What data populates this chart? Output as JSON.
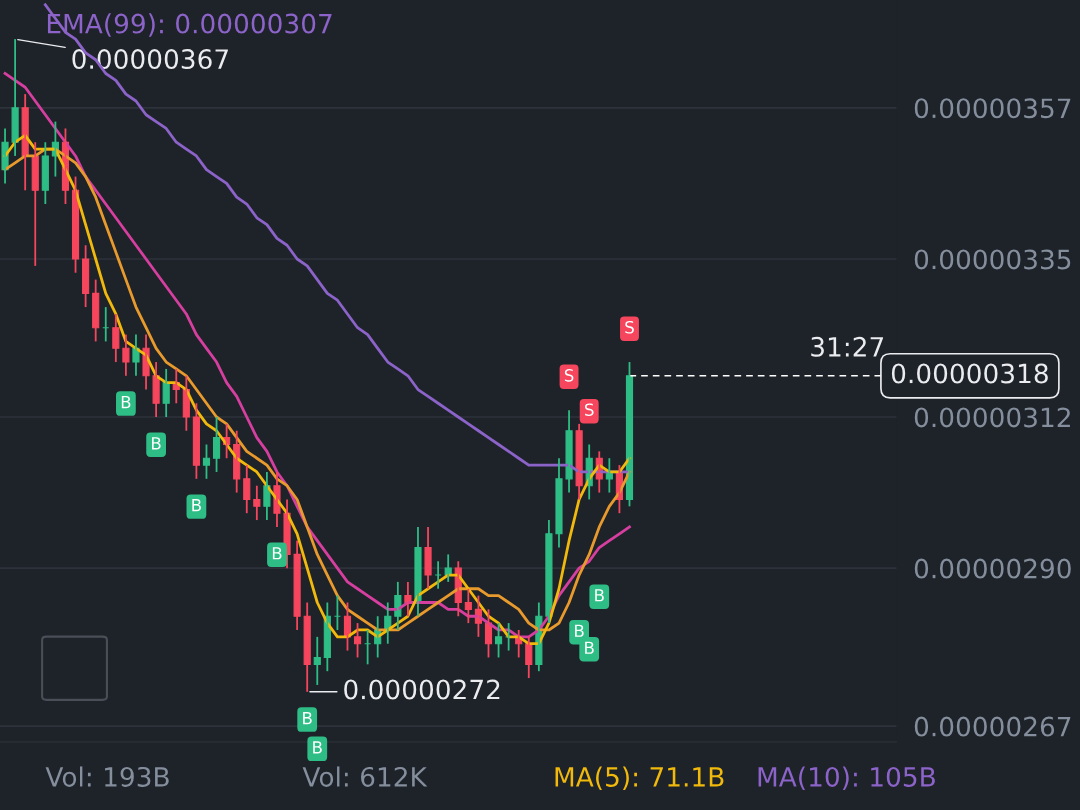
{
  "chart_data": {
    "type": "candlestick",
    "categories": [
      null,
      null,
      null,
      null,
      null,
      null,
      null,
      null,
      null,
      null,
      null,
      null,
      null,
      null,
      null,
      null,
      null,
      null,
      null,
      null,
      null,
      null,
      null,
      null,
      null,
      null,
      null,
      null,
      null,
      null,
      null,
      null,
      null,
      null,
      null,
      null,
      null,
      null,
      null,
      null,
      null,
      null,
      null,
      null,
      null,
      null,
      null,
      null,
      null,
      null,
      null,
      null,
      null,
      null,
      null,
      null,
      null,
      null,
      null,
      null,
      null,
      null,
      null
    ],
    "ohlc": [
      [
        3.48e-06,
        3.54e-06,
        3.46e-06,
        3.52e-06
      ],
      [
        3.52e-06,
        3.67e-06,
        3.5e-06,
        3.57e-06
      ],
      [
        3.57e-06,
        3.59e-06,
        3.45e-06,
        3.5e-06
      ],
      [
        3.5e-06,
        3.52e-06,
        3.34e-06,
        3.45e-06
      ],
      [
        3.45e-06,
        3.52e-06,
        3.43e-06,
        3.5e-06
      ],
      [
        3.5e-06,
        3.55e-06,
        3.47e-06,
        3.52e-06
      ],
      [
        3.52e-06,
        3.54e-06,
        3.43e-06,
        3.45e-06
      ],
      [
        3.45e-06,
        3.47e-06,
        3.33e-06,
        3.35e-06
      ],
      [
        3.35e-06,
        3.37e-06,
        3.28e-06,
        3.3e-06
      ],
      [
        3.3e-06,
        3.32e-06,
        3.23e-06,
        3.25e-06
      ],
      [
        3.25e-06,
        3.28e-06,
        3.23e-06,
        3.25e-06
      ],
      [
        3.25e-06,
        3.27e-06,
        3.2e-06,
        3.22e-06
      ],
      [
        3.22e-06,
        3.24e-06,
        3.18e-06,
        3.2e-06
      ],
      [
        3.2e-06,
        3.24e-06,
        3.18e-06,
        3.22e-06
      ],
      [
        3.22e-06,
        3.24e-06,
        3.16e-06,
        3.18e-06
      ],
      [
        3.18e-06,
        3.2e-06,
        3.12e-06,
        3.14e-06
      ],
      [
        3.14e-06,
        3.19e-06,
        3.12e-06,
        3.17e-06
      ],
      [
        3.17e-06,
        3.19e-06,
        3.14e-06,
        3.16e-06
      ],
      [
        3.16e-06,
        3.18e-06,
        3.1e-06,
        3.12e-06
      ],
      [
        3.12e-06,
        3.14e-06,
        3.03e-06,
        3.05e-06
      ],
      [
        3.05e-06,
        3.08e-06,
        3.03e-06,
        3.06e-06
      ],
      [
        3.06e-06,
        3.12e-06,
        3.04e-06,
        3.09e-06
      ],
      [
        3.09e-06,
        3.11e-06,
        3.06e-06,
        3.08e-06
      ],
      [
        3.08e-06,
        3.1e-06,
        3.01e-06,
        3.03e-06
      ],
      [
        3.03e-06,
        3.05e-06,
        2.98e-06,
        3e-06
      ],
      [
        3e-06,
        3.02e-06,
        2.97e-06,
        2.99e-06
      ],
      [
        2.99e-06,
        3.04e-06,
        2.97e-06,
        3.02e-06
      ],
      [
        3.02e-06,
        3.04e-06,
        2.96e-06,
        2.98e-06
      ],
      [
        2.98e-06,
        3e-06,
        2.9e-06,
        2.92e-06
      ],
      [
        2.92e-06,
        2.94e-06,
        2.81e-06,
        2.83e-06
      ],
      [
        2.83e-06,
        2.85e-06,
        2.72e-06,
        2.76e-06
      ],
      [
        2.76e-06,
        2.8e-06,
        2.73e-06,
        2.77e-06
      ],
      [
        2.77e-06,
        2.85e-06,
        2.75e-06,
        2.83e-06
      ],
      [
        2.83e-06,
        2.86e-06,
        2.81e-06,
        2.83e-06
      ],
      [
        2.83e-06,
        2.85e-06,
        2.78e-06,
        2.8e-06
      ],
      [
        2.8e-06,
        2.82e-06,
        2.77e-06,
        2.79e-06
      ],
      [
        2.79e-06,
        2.81e-06,
        2.76e-06,
        2.79e-06
      ],
      [
        2.79e-06,
        2.83e-06,
        2.77e-06,
        2.81e-06
      ],
      [
        2.81e-06,
        2.85e-06,
        2.79e-06,
        2.83e-06
      ],
      [
        2.83e-06,
        2.88e-06,
        2.81e-06,
        2.86e-06
      ],
      [
        2.86e-06,
        2.88e-06,
        2.83e-06,
        2.85e-06
      ],
      [
        2.85e-06,
        2.96e-06,
        2.83e-06,
        2.93e-06
      ],
      [
        2.93e-06,
        2.96e-06,
        2.87e-06,
        2.89e-06
      ],
      [
        2.89e-06,
        2.91e-06,
        2.87e-06,
        2.89e-06
      ],
      [
        2.89e-06,
        2.92e-06,
        2.88e-06,
        2.9e-06
      ],
      [
        2.9e-06,
        2.91e-06,
        2.83e-06,
        2.85e-06
      ],
      [
        2.85e-06,
        2.87e-06,
        2.82e-06,
        2.84e-06
      ],
      [
        2.84e-06,
        2.86e-06,
        2.8e-06,
        2.82e-06
      ],
      [
        2.82e-06,
        2.84e-06,
        2.77e-06,
        2.79e-06
      ],
      [
        2.79e-06,
        2.82e-06,
        2.77e-06,
        2.8e-06
      ],
      [
        2.8e-06,
        2.82e-06,
        2.78e-06,
        2.8e-06
      ],
      [
        2.8e-06,
        2.81e-06,
        2.77e-06,
        2.79e-06
      ],
      [
        2.79e-06,
        2.8e-06,
        2.74e-06,
        2.76e-06
      ],
      [
        2.76e-06,
        2.85e-06,
        2.75e-06,
        2.83e-06
      ],
      [
        2.83e-06,
        2.97e-06,
        2.82e-06,
        2.95e-06
      ],
      [
        2.95e-06,
        3.06e-06,
        2.93e-06,
        3.03e-06
      ],
      [
        3.03e-06,
        3.13e-06,
        3.01e-06,
        3.1e-06
      ],
      [
        3.1e-06,
        3.11e-06,
        3e-06,
        3.02e-06
      ],
      [
        3.02e-06,
        3.08e-06,
        3e-06,
        3.06e-06
      ],
      [
        3.06e-06,
        3.07e-06,
        3.01e-06,
        3.03e-06
      ],
      [
        3.03e-06,
        3.06e-06,
        3.01e-06,
        3.04e-06
      ],
      [
        3.04e-06,
        3.05e-06,
        2.98e-06,
        3e-06
      ],
      [
        3e-06,
        3.2e-06,
        2.99e-06,
        3.18e-06
      ]
    ],
    "colors": [
      "#2ebd85",
      "#2ebd85",
      "#f6465d",
      "#f6465d",
      "#2ebd85",
      "#2ebd85",
      "#f6465d",
      "#f6465d",
      "#f6465d",
      "#f6465d",
      "#2ebd85",
      "#f6465d",
      "#f6465d",
      "#2ebd85",
      "#f6465d",
      "#f6465d",
      "#2ebd85",
      "#f6465d",
      "#f6465d",
      "#f6465d",
      "#2ebd85",
      "#2ebd85",
      "#f6465d",
      "#f6465d",
      "#f6465d",
      "#f6465d",
      "#2ebd85",
      "#f6465d",
      "#f6465d",
      "#f6465d",
      "#f6465d",
      "#2ebd85",
      "#2ebd85",
      "#2ebd85",
      "#f6465d",
      "#f6465d",
      "#2ebd85",
      "#2ebd85",
      "#2ebd85",
      "#2ebd85",
      "#f6465d",
      "#2ebd85",
      "#f6465d",
      "#2ebd85",
      "#2ebd85",
      "#f6465d",
      "#f6465d",
      "#f6465d",
      "#f6465d",
      "#2ebd85",
      "#2ebd85",
      "#f6465d",
      "#f6465d",
      "#2ebd85",
      "#2ebd85",
      "#2ebd85",
      "#2ebd85",
      "#f6465d",
      "#2ebd85",
      "#f6465d",
      "#2ebd85",
      "#f6465d",
      "#2ebd85"
    ],
    "series": [
      {
        "type": "line",
        "color": "#d63fa0",
        "values": [
          3.62e-06,
          3.61e-06,
          3.6e-06,
          3.58e-06,
          3.56e-06,
          3.54e-06,
          3.52e-06,
          3.5e-06,
          3.47e-06,
          3.45e-06,
          3.43e-06,
          3.41e-06,
          3.39e-06,
          3.37e-06,
          3.35e-06,
          3.33e-06,
          3.31e-06,
          3.29e-06,
          3.27e-06,
          3.24e-06,
          3.22e-06,
          3.2e-06,
          3.17e-06,
          3.15e-06,
          3.12e-06,
          3.09e-06,
          3.07e-06,
          3.04e-06,
          3.02e-06,
          2.99e-06,
          2.96e-06,
          2.94e-06,
          2.92e-06,
          2.9e-06,
          2.88e-06,
          2.87e-06,
          2.86e-06,
          2.85e-06,
          2.84e-06,
          2.84e-06,
          2.85e-06,
          2.85e-06,
          2.85e-06,
          2.85e-06,
          2.84e-06,
          2.84e-06,
          2.83e-06,
          2.83e-06,
          2.82e-06,
          2.81e-06,
          2.81e-06,
          2.8e-06,
          2.8e-06,
          2.81e-06,
          2.83e-06,
          2.86e-06,
          2.88e-06,
          2.9e-06,
          2.91e-06,
          2.93e-06,
          2.94e-06,
          2.95e-06,
          2.96e-06
        ]
      },
      {
        "type": "line",
        "color": "#8c63c9",
        "values": [
          null,
          null,
          null,
          null,
          3.72e-06,
          3.7e-06,
          3.68e-06,
          3.67e-06,
          3.65e-06,
          3.64e-06,
          3.62e-06,
          3.61e-06,
          3.59e-06,
          3.58e-06,
          3.56e-06,
          3.55e-06,
          3.54e-06,
          3.52e-06,
          3.51e-06,
          3.5e-06,
          3.48e-06,
          3.47e-06,
          3.46e-06,
          3.44e-06,
          3.43e-06,
          3.41e-06,
          3.4e-06,
          3.38e-06,
          3.37e-06,
          3.35e-06,
          3.34e-06,
          3.32e-06,
          3.3e-06,
          3.29e-06,
          3.27e-06,
          3.25e-06,
          3.24e-06,
          3.22e-06,
          3.2e-06,
          3.19e-06,
          3.18e-06,
          3.16e-06,
          3.15e-06,
          3.14e-06,
          3.13e-06,
          3.12e-06,
          3.11e-06,
          3.1e-06,
          3.09e-06,
          3.08e-06,
          3.07e-06,
          3.06e-06,
          3.05e-06,
          3.05e-06,
          3.05e-06,
          3.05e-06,
          3.05e-06,
          3.04e-06,
          3.04e-06,
          3.04e-06,
          3.04e-06,
          3.04e-06,
          3.04e-06
        ]
      },
      {
        "type": "line",
        "color": "#e89a2c",
        "values": [
          3.48e-06,
          3.49e-06,
          3.5e-06,
          3.5e-06,
          3.51e-06,
          3.51e-06,
          3.5e-06,
          3.49e-06,
          3.47e-06,
          3.44e-06,
          3.4e-06,
          3.36e-06,
          3.32e-06,
          3.28e-06,
          3.25e-06,
          3.22e-06,
          3.2e-06,
          3.19e-06,
          3.18e-06,
          3.16e-06,
          3.14e-06,
          3.12e-06,
          3.11e-06,
          3.09e-06,
          3.07e-06,
          3.06e-06,
          3.05e-06,
          3.03e-06,
          3.02e-06,
          3e-06,
          2.96e-06,
          2.92e-06,
          2.89e-06,
          2.86e-06,
          2.84e-06,
          2.83e-06,
          2.82e-06,
          2.81e-06,
          2.81e-06,
          2.81e-06,
          2.82e-06,
          2.83e-06,
          2.84e-06,
          2.85e-06,
          2.86e-06,
          2.87e-06,
          2.87e-06,
          2.87e-06,
          2.86e-06,
          2.86e-06,
          2.85e-06,
          2.84e-06,
          2.82e-06,
          2.81e-06,
          2.81e-06,
          2.82e-06,
          2.85e-06,
          2.89e-06,
          2.92e-06,
          2.96e-06,
          2.99e-06,
          3.01e-06,
          3.04e-06
        ]
      },
      {
        "type": "line",
        "color": "#f0b90b",
        "values": [
          3.5e-06,
          3.52e-06,
          3.53e-06,
          3.51e-06,
          3.51e-06,
          3.51e-06,
          3.48e-06,
          3.45e-06,
          3.4e-06,
          3.35e-06,
          3.3e-06,
          3.27e-06,
          3.23e-06,
          3.22e-06,
          3.21e-06,
          3.18e-06,
          3.17e-06,
          3.17e-06,
          3.16e-06,
          3.13e-06,
          3.11e-06,
          3.1e-06,
          3.08e-06,
          3.06e-06,
          3.05e-06,
          3.04e-06,
          3.02e-06,
          3e-06,
          2.98e-06,
          2.95e-06,
          2.9e-06,
          2.85e-06,
          2.82e-06,
          2.8e-06,
          2.8e-06,
          2.81e-06,
          2.81e-06,
          2.8e-06,
          2.81e-06,
          2.82e-06,
          2.83e-06,
          2.86e-06,
          2.87e-06,
          2.88e-06,
          2.89e-06,
          2.89e-06,
          2.87e-06,
          2.85e-06,
          2.83e-06,
          2.82e-06,
          2.8e-06,
          2.8e-06,
          2.79e-06,
          2.79e-06,
          2.82e-06,
          2.87e-06,
          2.94e-06,
          3e-06,
          3.03e-06,
          3.05e-06,
          3.04e-06,
          3.04e-06,
          3.06e-06
        ]
      }
    ],
    "ylim": [
      2.647e-06,
      3.727e-06
    ],
    "yticks": [
      {
        "value": 3.57e-06,
        "label": "0.00000357"
      },
      {
        "value": 3.35e-06,
        "label": "0.00000335"
      },
      {
        "value": 3.12e-06,
        "label": "0.00000312"
      },
      {
        "value": 2.9e-06,
        "label": "0.00000290"
      },
      {
        "value": 2.67e-06,
        "label": "0.00000267"
      }
    ],
    "tick_labels": "y",
    "grid": "y",
    "ref_lines": [
      {
        "axis": "y",
        "value": 3.18e-06,
        "label": "0.00000318",
        "color": "#ffffff",
        "line_style": "dashed"
      }
    ],
    "annotations": [
      "EMA(99): 0.00000307",
      "0.00000367",
      "0.00000272",
      "31:27",
      "Vol: 193B",
      "Vol: 612K",
      "MA(5): 71.1B",
      "MA(10): 105B",
      "B",
      "B",
      "B",
      "B",
      "B",
      "B",
      "B",
      "B",
      "B",
      "S",
      "S",
      "S"
    ]
  }
}
